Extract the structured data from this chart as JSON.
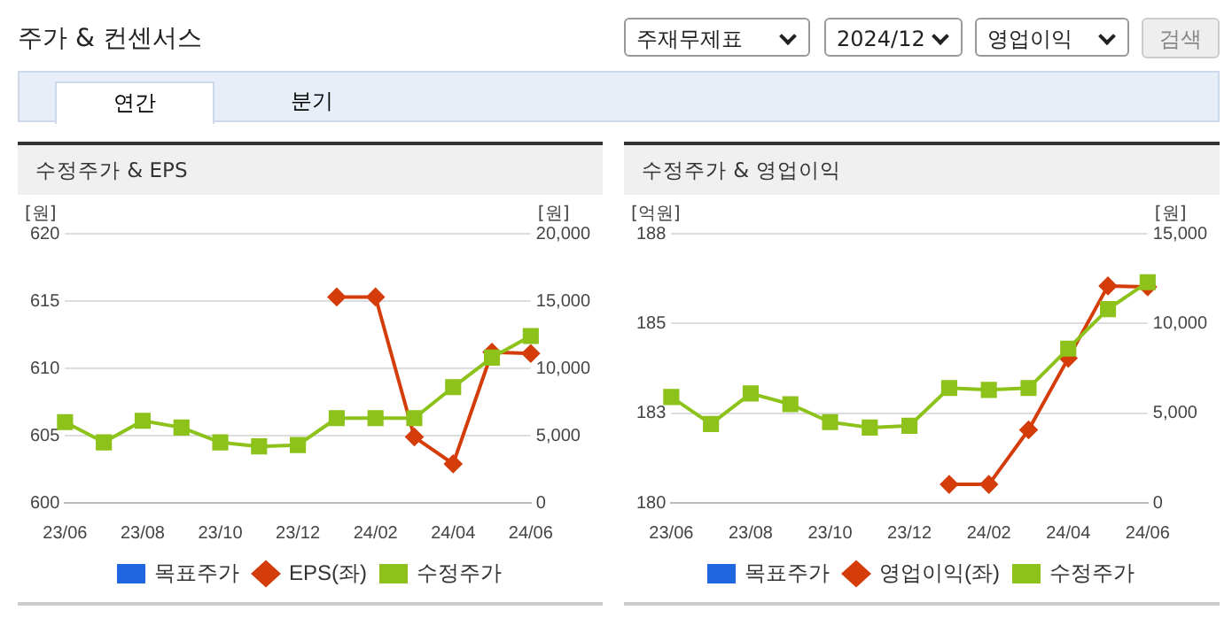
{
  "chart_data": [
    {
      "type": "other",
      "title": "주가 & 컨센서스",
      "annotations": [
        "주재무제표",
        "2024/12",
        "영업이익",
        "검색",
        "연간",
        "분기"
      ]
    },
    {
      "type": "line",
      "title": "수정주가 & EPS",
      "ylabel": "[원]",
      "y2label": "[원]",
      "categories": [
        "23/06",
        null,
        "23/08",
        null,
        "23/10",
        null,
        "23/12",
        null,
        "24/02",
        null,
        "24/04",
        null,
        "24/06"
      ],
      "series": [
        {
          "name": "목표주가",
          "color": "#1f66e0",
          "marker": "square",
          "values": [
            null,
            null,
            null,
            null,
            null,
            null,
            null,
            null,
            null,
            null,
            null,
            null,
            null
          ]
        },
        {
          "name": "EPS(좌)",
          "color": "#d43d0a",
          "marker": "diamond",
          "values": [
            null,
            null,
            null,
            null,
            null,
            null,
            null,
            615.3,
            615.3,
            604.9,
            602.9,
            611.2,
            611.1
          ]
        },
        {
          "name": "수정주가",
          "color": "#8cc21a",
          "marker": "square",
          "axis": "y2",
          "values": [
            6000,
            4500,
            6100,
            5600,
            4500,
            4200,
            4300,
            6300,
            6300,
            6300,
            8600,
            10800,
            12400
          ]
        }
      ],
      "ylim": [
        600,
        620
      ],
      "yticks": [
        600,
        605,
        610,
        615,
        620
      ],
      "y2lim": [
        0,
        20000
      ],
      "y2ticks": [
        0,
        {
          "value": 5000,
          "label": "5,000"
        },
        {
          "value": 10000,
          "label": "10,000"
        },
        {
          "value": 15000,
          "label": "15,000"
        },
        {
          "value": 20000,
          "label": "20,000"
        }
      ],
      "grid": "y",
      "legend": "bottom"
    },
    {
      "type": "line",
      "title": "수정주가 & 영업이익",
      "ylabel": "[억원]",
      "y2label": "[원]",
      "categories": [
        "23/06",
        null,
        "23/08",
        null,
        "23/10",
        null,
        "23/12",
        null,
        "24/02",
        null,
        "24/04",
        null,
        "24/06"
      ],
      "series": [
        {
          "name": "목표주가",
          "color": "#1f66e0",
          "marker": "square",
          "values": [
            null,
            null,
            null,
            null,
            null,
            null,
            null,
            null,
            null,
            null,
            null,
            null,
            null
          ]
        },
        {
          "name": "영업이익(좌)",
          "color": "#d43d0a",
          "marker": "diamond",
          "values": [
            null,
            null,
            null,
            null,
            null,
            null,
            null,
            180.55,
            180.55,
            182.17,
            184.3,
            186.45,
            186.42
          ]
        },
        {
          "name": "수정주가",
          "color": "#8cc21a",
          "marker": "square",
          "axis": "y2",
          "values": [
            5900,
            4400,
            6100,
            5500,
            4500,
            4200,
            4300,
            6400,
            6300,
            6400,
            8600,
            10800,
            12300
          ]
        }
      ],
      "ylim": [
        180,
        188
      ],
      "yticks": [
        180,
        {
          "value": 182.667,
          "label": "183"
        },
        {
          "value": 185.333,
          "label": "185"
        },
        188
      ],
      "y2lim": [
        0,
        15000
      ],
      "y2ticks": [
        0,
        {
          "value": 5000,
          "label": "5,000"
        },
        {
          "value": 10000,
          "label": "10,000"
        },
        {
          "value": 15000,
          "label": "15,000"
        }
      ],
      "grid": "y",
      "legend": "bottom"
    }
  ]
}
